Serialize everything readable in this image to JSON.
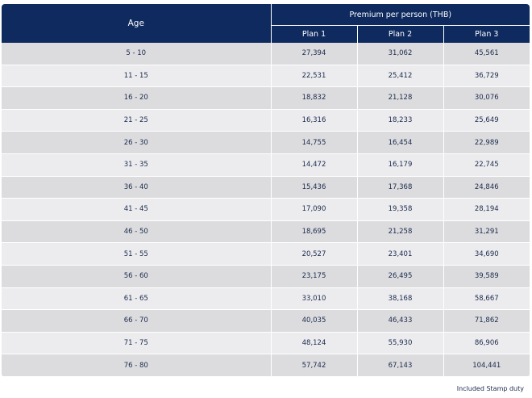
{
  "header": {
    "age": "Age",
    "premium": "Premium per person (THB)",
    "plans": [
      "Plan 1",
      "Plan 2",
      "Plan 3"
    ]
  },
  "rows": [
    {
      "age": "5 - 10",
      "p1": "27,394",
      "p2": "31,062",
      "p3": "45,561"
    },
    {
      "age": "11 - 15",
      "p1": "22,531",
      "p2": "25,412",
      "p3": "36,729"
    },
    {
      "age": "16 - 20",
      "p1": "18,832",
      "p2": "21,128",
      "p3": "30,076"
    },
    {
      "age": "21 - 25",
      "p1": "16,316",
      "p2": "18,233",
      "p3": "25,649"
    },
    {
      "age": "26 - 30",
      "p1": "14,755",
      "p2": "16,454",
      "p3": "22,989"
    },
    {
      "age": "31 - 35",
      "p1": "14,472",
      "p2": "16,179",
      "p3": "22,745"
    },
    {
      "age": "36 - 40",
      "p1": "15,436",
      "p2": "17,368",
      "p3": "24,846"
    },
    {
      "age": "41 - 45",
      "p1": "17,090",
      "p2": "19,358",
      "p3": "28,194"
    },
    {
      "age": "46 - 50",
      "p1": "18,695",
      "p2": "21,258",
      "p3": "31,291"
    },
    {
      "age": "51 - 55",
      "p1": "20,527",
      "p2": "23,401",
      "p3": "34,690"
    },
    {
      "age": "56 - 60",
      "p1": "23,175",
      "p2": "26,495",
      "p3": "39,589"
    },
    {
      "age": "61 - 65",
      "p1": "33,010",
      "p2": "38,168",
      "p3": "58,667"
    },
    {
      "age": "66 - 70",
      "p1": "40,035",
      "p2": "46,433",
      "p3": "71,862"
    },
    {
      "age": "71 - 75",
      "p1": "48,124",
      "p2": "55,930",
      "p3": "86,906"
    },
    {
      "age": "76 - 80",
      "p1": "57,742",
      "p2": "67,143",
      "p3": "104,441"
    }
  ],
  "note": "Included Stamp duty",
  "colors": {
    "header_bg": "#0e2a5e",
    "row_dark": "#dcdcdf",
    "row_light": "#ececef",
    "text": "#1a2a4a"
  }
}
